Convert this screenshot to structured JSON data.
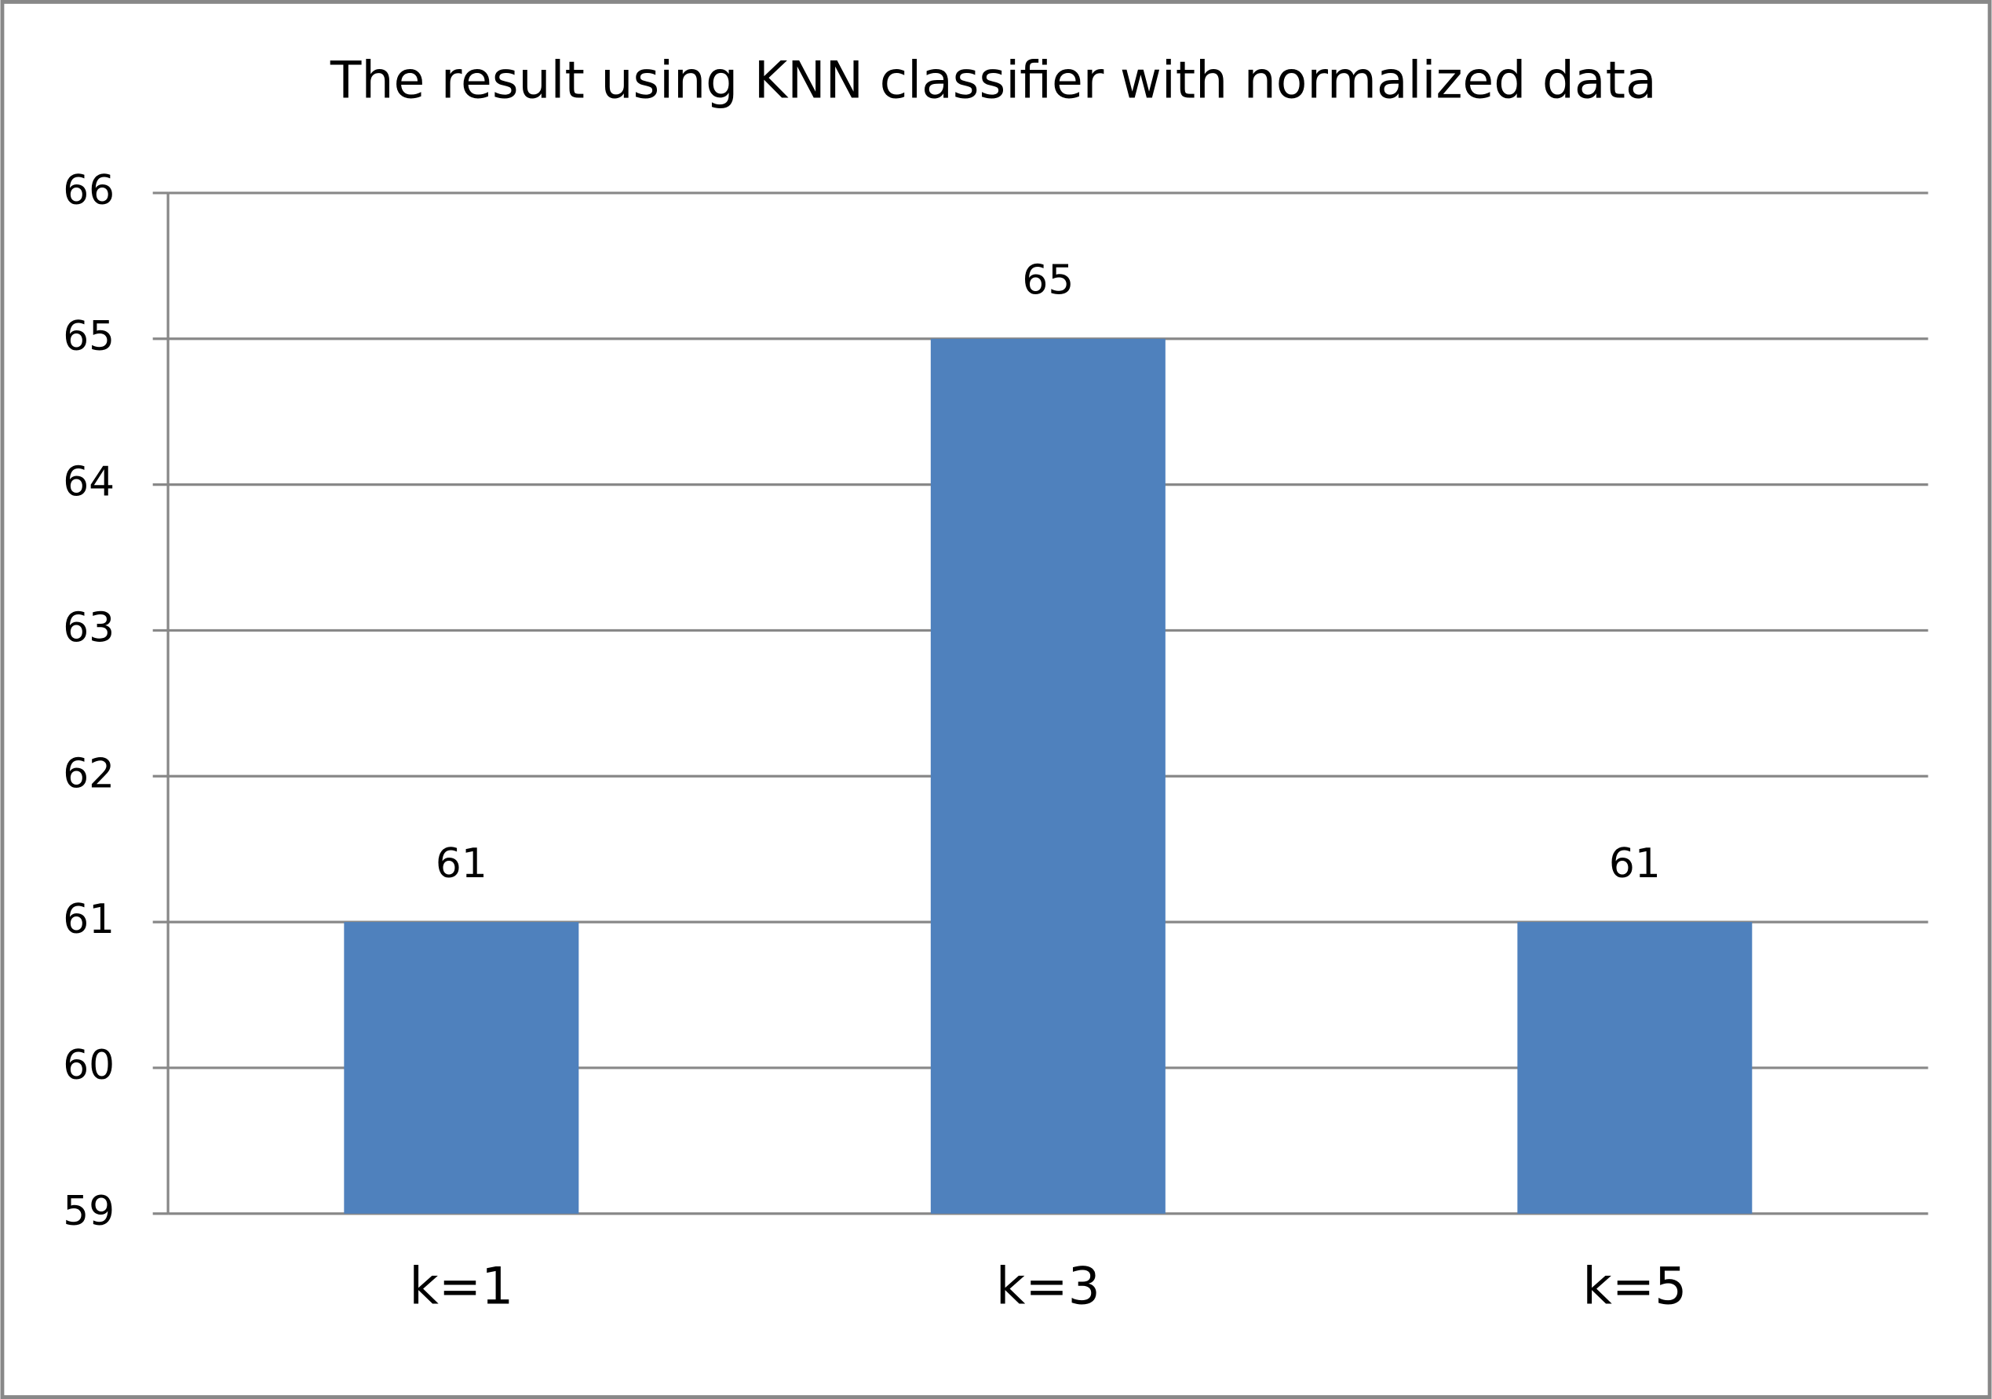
{
  "chart_data": {
    "type": "bar",
    "title": "The result using KNN classifier with normalized data",
    "categories": [
      "k=1",
      "k=3",
      "k=5"
    ],
    "values": [
      61,
      65,
      61
    ],
    "color": "#4f81bd",
    "ylim": [
      59,
      66
    ],
    "yticks": [
      59,
      60,
      61,
      62,
      63,
      64,
      65,
      66
    ],
    "grid": true
  }
}
